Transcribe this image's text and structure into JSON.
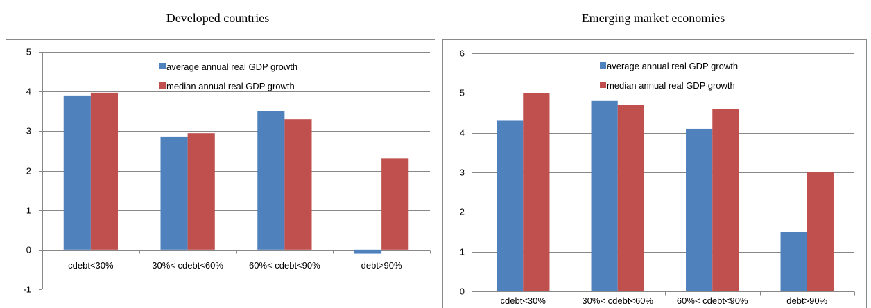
{
  "chart_data": [
    {
      "type": "bar",
      "title": "Developed countries",
      "categories": [
        "cdebt<30%",
        "30%< cdebt<60%",
        "60%< cdebt<90%",
        "debt>90%"
      ],
      "series": [
        {
          "name": "average annual real GDP growth",
          "color": "#4f81bd",
          "values": [
            3.9,
            2.85,
            3.5,
            -0.1
          ]
        },
        {
          "name": "median annual real GDP growth",
          "color": "#c0504d",
          "values": [
            3.97,
            2.95,
            3.3,
            2.3
          ]
        }
      ],
      "yticks": [
        -1,
        0,
        1,
        2,
        3,
        4,
        5
      ],
      "ylim": [
        -1,
        5
      ],
      "grid": true,
      "legend_position": "top-center"
    },
    {
      "type": "bar",
      "title": "Emerging market economies",
      "categories": [
        "cdebt<30%",
        "30%< cdebt<60%",
        "60%< cdebt<90%",
        "debt>90%"
      ],
      "series": [
        {
          "name": "average annual real GDP growth",
          "color": "#4f81bd",
          "values": [
            4.3,
            4.8,
            4.1,
            1.5
          ]
        },
        {
          "name": "median annual real GDP growth",
          "color": "#c0504d",
          "values": [
            5.0,
            4.7,
            4.6,
            3.0
          ]
        }
      ],
      "yticks": [
        0,
        1,
        2,
        3,
        4,
        5,
        6
      ],
      "ylim": [
        0,
        6
      ],
      "grid": true,
      "legend_position": "top-center"
    }
  ]
}
